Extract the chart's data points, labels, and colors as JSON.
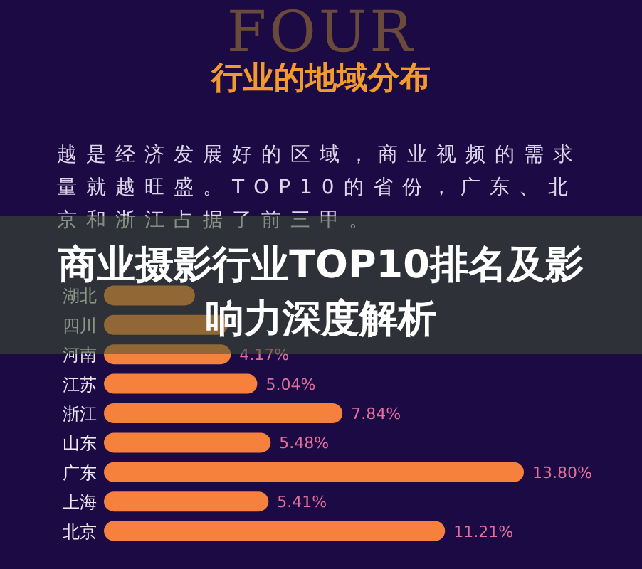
{
  "chart_data": {
    "type": "bar",
    "orientation": "horizontal",
    "title": "行业的地域分布",
    "categories": [
      null,
      "湖北",
      "四川",
      "河南",
      "江苏",
      "浙江",
      "山东",
      "广东",
      "上海",
      "北京"
    ],
    "values": [
      null,
      2.99,
      4.07,
      4.17,
      5.04,
      7.84,
      5.48,
      13.8,
      5.41,
      11.21
    ],
    "value_labels": [
      null,
      null,
      null,
      "4.17%",
      "5.04%",
      "7.84%",
      "5.48%",
      "13.80%",
      "5.41%",
      "11.21%"
    ],
    "color": "#f5813c",
    "annotations": [
      "FOUR",
      "越是经济发展好的区域，商业视频的需求量就越旺盛。TOP10的省份，广东、北京和浙江占据了前三甲。",
      "商业摄影行业TOP10排名及影响力深度解析"
    ]
  }
}
